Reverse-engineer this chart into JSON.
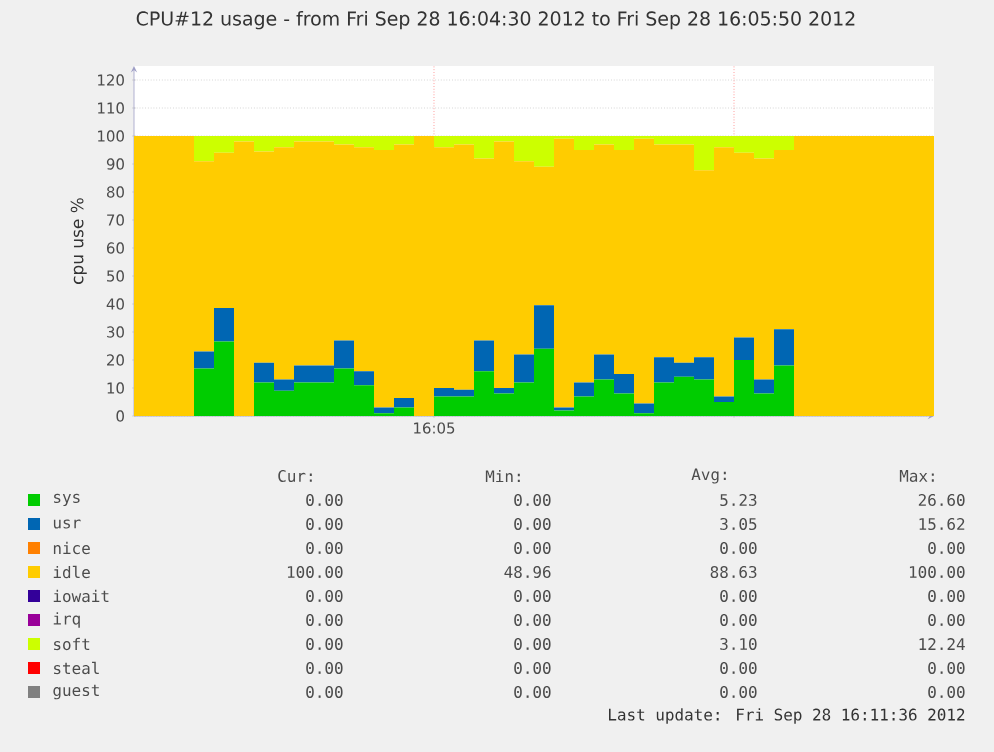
{
  "chart_data": {
    "type": "area",
    "title": "CPU#12 usage - from Fri Sep 28 16:04:30 2012 to Fri Sep 28 16:05:50 2012",
    "ylabel": "cpu use %",
    "stacked": true,
    "grid": true,
    "legend": "bottom",
    "categories": [
      null,
      null,
      null,
      null,
      null,
      null,
      null,
      null,
      null,
      null,
      null,
      null,
      null,
      null,
      null,
      null,
      null,
      null,
      null,
      null,
      null,
      null,
      null,
      null,
      null,
      null,
      null,
      null,
      null,
      null,
      null,
      null,
      null,
      null,
      null,
      null,
      null,
      null,
      null,
      null,
      null
    ],
    "ylim": [
      0,
      125
    ],
    "yticks": [
      0,
      10,
      20,
      30,
      40,
      50,
      60,
      70,
      80,
      90,
      100,
      110,
      120
    ],
    "series": [
      {
        "name": "sys",
        "color": "#00cc00",
        "values": [
          0,
          0,
          0,
          17,
          26.6,
          0,
          12,
          9,
          12,
          12,
          17,
          11,
          1,
          3,
          0,
          7,
          7,
          16,
          8,
          12,
          24,
          2,
          7,
          13,
          8,
          1,
          12,
          14,
          13,
          5,
          20,
          8,
          18,
          0,
          0,
          0,
          0,
          0,
          0,
          0,
          0
        ]
      },
      {
        "name": "usr",
        "color": "#0066b3",
        "values": [
          0,
          0,
          0,
          6,
          12,
          0,
          7,
          4,
          6,
          6,
          10,
          5,
          2,
          3.4,
          0,
          3,
          2.4,
          11,
          2,
          10,
          15.6,
          1,
          5,
          9,
          7,
          3.5,
          9,
          5,
          8,
          2,
          8,
          5,
          13,
          0,
          0,
          0,
          0,
          0,
          0,
          0,
          0
        ]
      },
      {
        "name": "nice",
        "color": "#ff8000",
        "values": [
          null,
          null,
          null,
          null,
          null,
          null,
          null,
          null,
          null,
          null,
          null,
          null,
          null,
          null,
          null,
          null,
          null,
          null,
          null,
          null,
          null,
          null,
          null,
          null,
          null,
          null,
          null,
          null,
          null,
          null,
          null,
          null,
          null,
          null,
          null,
          null,
          null,
          null,
          null,
          null,
          null
        ]
      },
      {
        "name": "idle",
        "color": "#ffcc00",
        "values": [
          100,
          100,
          100,
          68,
          55.4,
          98,
          75.5,
          83,
          80,
          80,
          70,
          80,
          92,
          90.6,
          100,
          86,
          87.6,
          65,
          88,
          69,
          49.4,
          96,
          83,
          75,
          80,
          94.5,
          76,
          78,
          66.8,
          89,
          66,
          79,
          64,
          100,
          100,
          100,
          100,
          100,
          100,
          100,
          100
        ]
      },
      {
        "name": "iowait",
        "color": "#330099",
        "values": [
          null,
          null,
          null,
          null,
          null,
          null,
          null,
          null,
          null,
          null,
          null,
          null,
          null,
          null,
          null,
          null,
          null,
          null,
          null,
          null,
          null,
          null,
          null,
          null,
          null,
          null,
          null,
          null,
          null,
          null,
          null,
          null,
          null,
          null,
          null,
          null,
          null,
          null,
          null,
          null,
          null
        ]
      },
      {
        "name": "irq",
        "color": "#990099",
        "values": [
          null,
          null,
          null,
          null,
          null,
          null,
          null,
          null,
          null,
          null,
          null,
          null,
          null,
          null,
          null,
          null,
          null,
          null,
          null,
          null,
          null,
          null,
          null,
          null,
          null,
          null,
          null,
          null,
          null,
          null,
          null,
          null,
          null,
          null,
          null,
          null,
          null,
          null,
          null,
          null,
          null
        ]
      },
      {
        "name": "soft",
        "color": "#ccff00",
        "values": [
          0,
          0,
          0,
          9,
          6,
          2,
          5.5,
          4,
          2,
          2,
          3,
          4,
          5,
          3,
          0,
          4,
          3,
          8,
          2,
          9,
          11,
          1,
          5,
          3,
          5,
          1,
          3,
          3,
          12.2,
          4,
          6,
          8,
          5,
          0,
          0,
          0,
          0,
          0,
          0,
          0,
          0
        ]
      },
      {
        "name": "steal",
        "color": "#ff0000",
        "values": [
          null,
          null,
          null,
          null,
          null,
          null,
          null,
          null,
          null,
          null,
          null,
          null,
          null,
          null,
          null,
          null,
          null,
          null,
          null,
          null,
          null,
          null,
          null,
          null,
          null,
          null,
          null,
          null,
          null,
          null,
          null,
          null,
          null,
          null,
          null,
          null,
          null,
          null,
          null,
          null,
          null
        ]
      },
      {
        "name": "guest",
        "color": "#808080",
        "values": [
          null,
          null,
          null,
          null,
          null,
          null,
          null,
          null,
          null,
          null,
          null,
          null,
          null,
          null,
          null,
          null,
          null,
          null,
          null,
          null,
          null,
          null,
          null,
          null,
          null,
          null,
          null,
          null,
          null,
          null,
          null,
          null,
          null,
          null,
          null,
          null,
          null,
          null,
          null,
          null,
          null
        ]
      }
    ],
    "annotations": [
      "Cur:",
      "Min:",
      "Avg:",
      "Max:",
      "0.00",
      "0.00",
      "5.23",
      "26.60",
      "0.00",
      "0.00",
      "3.05",
      "15.62",
      "0.00",
      "0.00",
      "0.00",
      "0.00",
      "100.00",
      "48.96",
      "88.63",
      "100.00",
      "0.00",
      "0.00",
      "0.00",
      "0.00",
      "0.00",
      "0.00",
      "0.00",
      "0.00",
      "0.00",
      "0.00",
      "3.10",
      "12.24",
      "0.00",
      "0.00",
      "0.00",
      "0.00",
      "0.00",
      "0.00",
      "0.00",
      "0.00",
      "Last update: Fri Sep 28 16:11:36 2012",
      "16:05"
    ]
  }
}
